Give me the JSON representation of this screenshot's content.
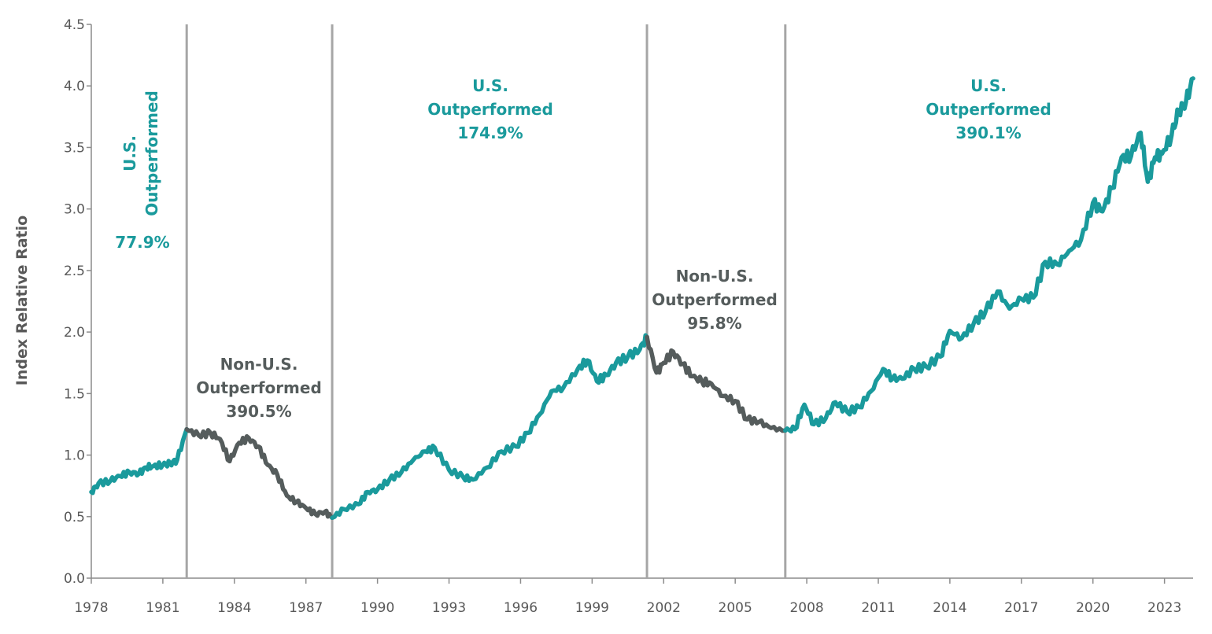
{
  "chart_data": {
    "type": "line",
    "title": "",
    "xlabel": "",
    "ylabel": "Index Relative Ratio",
    "ylim": [
      0,
      4.5
    ],
    "xlim": [
      1978,
      2024.2
    ],
    "y_ticks": [
      "0.0",
      "0.5",
      "1.0",
      "1.5",
      "2.0",
      "2.5",
      "3.0",
      "3.5",
      "4.0",
      "4.5"
    ],
    "x_ticks": [
      "1978",
      "1981",
      "1984",
      "1987",
      "1990",
      "1993",
      "1996",
      "1999",
      "2002",
      "2005",
      "2008",
      "2011",
      "2014",
      "2017",
      "2020",
      "2023"
    ],
    "period_dividers": [
      1982.0,
      1988.1,
      2001.3,
      2007.1
    ],
    "colors": {
      "us": "#1a9a9c",
      "non_us": "#555c5c",
      "divider": "#a6a6a6"
    },
    "series": [
      {
        "name": "U.S. Outperformed",
        "color": "#1a9a9c",
        "x": [
          1978.0,
          1978.3,
          1978.8,
          1979.2,
          1979.6,
          1980.0,
          1980.3,
          1980.6,
          1981.0,
          1981.3,
          1981.6,
          1982.0
        ],
        "y": [
          0.7,
          0.77,
          0.79,
          0.83,
          0.86,
          0.85,
          0.9,
          0.91,
          0.92,
          0.93,
          0.96,
          1.21
        ]
      },
      {
        "name": "Non-U.S. Outperformed",
        "color": "#555c5c",
        "x": [
          1982.0,
          1982.5,
          1983.0,
          1983.4,
          1983.8,
          1984.2,
          1984.6,
          1985.0,
          1985.4,
          1985.8,
          1986.2,
          1986.6,
          1987.0,
          1987.4,
          1987.8,
          1988.1
        ],
        "y": [
          1.21,
          1.16,
          1.18,
          1.13,
          0.95,
          1.1,
          1.14,
          1.07,
          0.92,
          0.84,
          0.67,
          0.62,
          0.57,
          0.52,
          0.54,
          0.49
        ]
      },
      {
        "name": "U.S. Outperformed",
        "color": "#1a9a9c",
        "x": [
          1988.1,
          1988.6,
          1989.2,
          1989.6,
          1990.0,
          1990.5,
          1991.0,
          1991.5,
          1992.0,
          1992.4,
          1993.0,
          1993.6,
          1994.0,
          1994.6,
          1995.2,
          1995.8,
          1996.3,
          1996.8,
          1997.3,
          1997.8,
          1998.4,
          1998.8,
          1999.2,
          1999.6,
          2000.0,
          2000.5,
          2001.0,
          2001.3
        ],
        "y": [
          0.49,
          0.56,
          0.6,
          0.7,
          0.72,
          0.8,
          0.86,
          0.96,
          1.03,
          1.06,
          0.88,
          0.82,
          0.8,
          0.9,
          1.03,
          1.07,
          1.18,
          1.33,
          1.52,
          1.55,
          1.7,
          1.77,
          1.6,
          1.65,
          1.75,
          1.8,
          1.86,
          1.96
        ]
      },
      {
        "name": "Non-U.S. Outperformed",
        "color": "#555c5c",
        "x": [
          2001.3,
          2001.7,
          2002.0,
          2002.4,
          2002.8,
          2003.2,
          2003.6,
          2004.0,
          2004.5,
          2005.0,
          2005.5,
          2006.0,
          2006.5,
          2007.1
        ],
        "y": [
          1.96,
          1.67,
          1.75,
          1.84,
          1.74,
          1.64,
          1.6,
          1.58,
          1.48,
          1.44,
          1.29,
          1.27,
          1.22,
          1.2
        ]
      },
      {
        "name": "U.S. Outperformed",
        "color": "#1a9a9c",
        "x": [
          2007.1,
          2007.5,
          2007.9,
          2008.3,
          2008.8,
          2009.2,
          2009.7,
          2010.2,
          2010.7,
          2011.2,
          2011.6,
          2012.0,
          2012.5,
          2013.0,
          2013.6,
          2014.0,
          2014.5,
          2015.0,
          2015.5,
          2016.0,
          2016.5,
          2017.0,
          2017.5,
          2018.0,
          2018.5,
          2019.0,
          2019.5,
          2020.0,
          2020.4,
          2020.8,
          2021.2,
          2021.6,
          2022.0,
          2022.3,
          2022.6,
          2022.9,
          2023.3,
          2023.6,
          2023.9,
          2024.2
        ],
        "y": [
          1.2,
          1.21,
          1.41,
          1.25,
          1.3,
          1.43,
          1.35,
          1.39,
          1.52,
          1.7,
          1.62,
          1.62,
          1.7,
          1.72,
          1.8,
          2.01,
          1.95,
          2.07,
          2.17,
          2.33,
          2.19,
          2.27,
          2.28,
          2.57,
          2.55,
          2.66,
          2.75,
          3.05,
          2.98,
          3.17,
          3.42,
          3.43,
          3.62,
          3.22,
          3.42,
          3.45,
          3.6,
          3.8,
          3.87,
          4.06
        ]
      }
    ],
    "annotations": [
      {
        "group": "us",
        "lines": [
          "U.S.",
          "Outperformed"
        ],
        "rotated": true
      },
      {
        "group": "us",
        "lines": [
          "77.9%"
        ]
      },
      {
        "group": "non_us",
        "lines": [
          "Non-U.S.",
          "Outperformed",
          "390.5%"
        ]
      },
      {
        "group": "us",
        "lines": [
          "U.S.",
          "Outperformed",
          "174.9%"
        ]
      },
      {
        "group": "non_us",
        "lines": [
          "Non-U.S.",
          "Outperformed",
          "95.8%"
        ]
      },
      {
        "group": "us",
        "lines": [
          "U.S.",
          "Outperformed",
          "390.1%"
        ]
      }
    ]
  }
}
